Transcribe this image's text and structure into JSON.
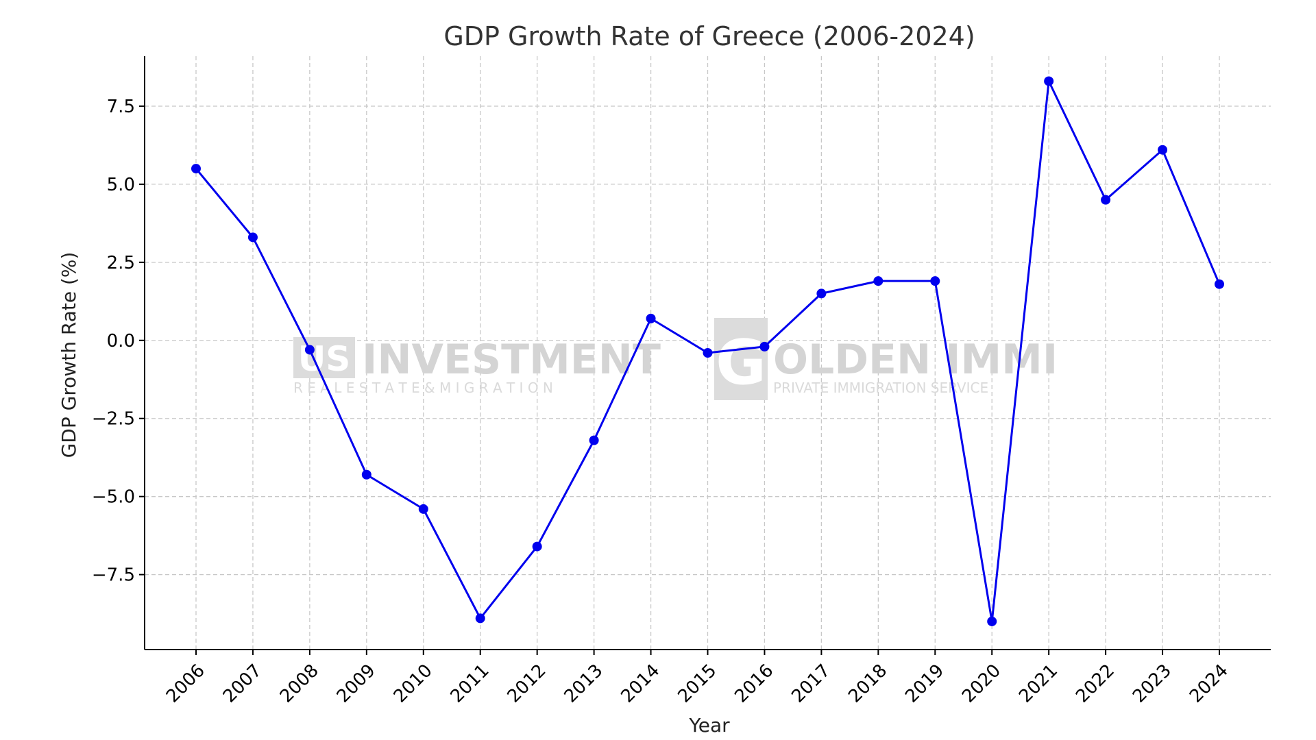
{
  "chart_data": {
    "type": "line",
    "title": "GDP Growth Rate of Greece (2006-2024)",
    "xlabel": "Year",
    "ylabel": "GDP Growth Rate (%)",
    "categories": [
      "2006",
      "2007",
      "2008",
      "2009",
      "2010",
      "2011",
      "2012",
      "2013",
      "2014",
      "2015",
      "2016",
      "2017",
      "2018",
      "2019",
      "2020",
      "2021",
      "2022",
      "2023",
      "2024"
    ],
    "values": [
      5.5,
      3.3,
      -0.3,
      -4.3,
      -5.4,
      -8.9,
      -6.6,
      -3.2,
      0.7,
      -0.4,
      -0.2,
      1.5,
      1.9,
      1.9,
      -9.0,
      8.3,
      4.5,
      6.1,
      1.8
    ],
    "yticks": [
      -7.5,
      -5.0,
      -2.5,
      0.0,
      2.5,
      5.0,
      7.5
    ],
    "ytick_labels": [
      "−7.5",
      "−5.0",
      "−2.5",
      "0.0",
      "2.5",
      "5.0",
      "7.5"
    ],
    "ylim": [
      -9.9,
      9.1
    ],
    "grid": true,
    "line_color": "#0000ee",
    "marker_color": "#0000ee"
  },
  "watermarks": {
    "left_logo": "US",
    "left_main": "INVESTMENT",
    "left_sub": "R E A L   E S T A T E   &   M I G R A T I O N",
    "right_logo": "G",
    "right_main": "OLDEN IMMI",
    "right_sub": "PRIVATE IMMIGRATION SERVICE"
  }
}
